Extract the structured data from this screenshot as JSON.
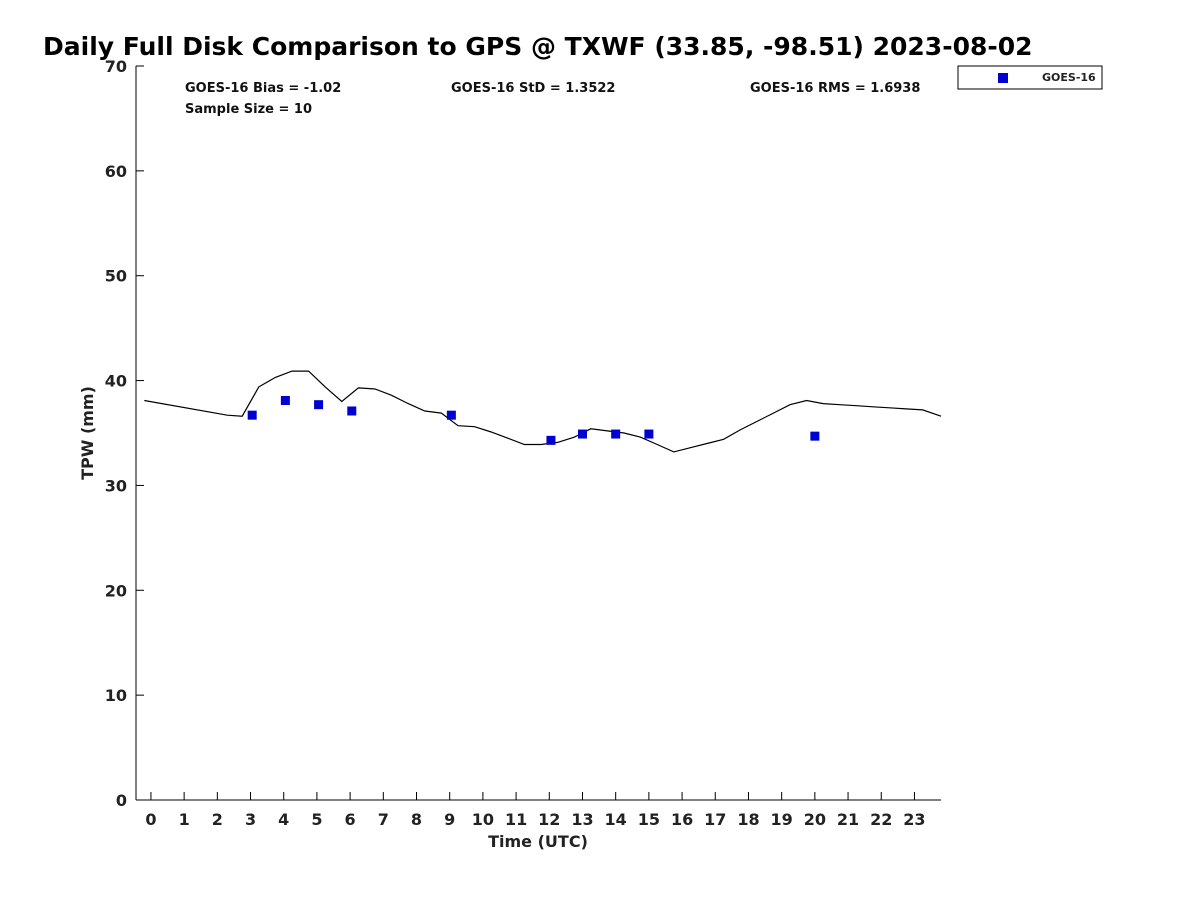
{
  "chart_data": {
    "type": "scatter",
    "title": "Daily Full Disk Comparison to GPS @ TXWF (33.85, -98.51) 2023-08-02",
    "xlabel": "Time (UTC)",
    "ylabel": "TPW (mm)",
    "xlim": [
      -0.45,
      23.8
    ],
    "ylim": [
      0,
      70
    ],
    "x_ticks": [
      0,
      1,
      2,
      3,
      4,
      5,
      6,
      7,
      8,
      9,
      10,
      11,
      12,
      13,
      14,
      15,
      16,
      17,
      18,
      19,
      20,
      21,
      22,
      23
    ],
    "y_ticks": [
      0,
      10,
      20,
      30,
      40,
      50,
      60,
      70
    ],
    "grid": false,
    "legend_position": "top-right-outside",
    "stats": {
      "bias": "GOES-16 Bias = -1.02",
      "std": "GOES-16 StD = 1.3522",
      "rms": "GOES-16 RMS = 1.6938",
      "sample_size": "Sample Size = 10"
    },
    "gps_line": {
      "color": "#000000",
      "x": [
        -0.2,
        2.3,
        2.75,
        3.25,
        3.75,
        4.25,
        4.75,
        5.25,
        5.75,
        6.25,
        6.75,
        7.25,
        7.75,
        8.25,
        8.75,
        9.25,
        9.75,
        10.25,
        10.75,
        11.25,
        11.75,
        12.25,
        12.75,
        13.25,
        13.75,
        14.25,
        14.75,
        15.25,
        15.75,
        16.25,
        16.75,
        17.25,
        17.75,
        18.25,
        18.75,
        19.25,
        19.75,
        20.25,
        20.75,
        21.25,
        21.75,
        22.25,
        22.75,
        23.25,
        23.8
      ],
      "y": [
        38.1,
        36.7,
        36.6,
        39.4,
        40.3,
        40.9,
        40.9,
        39.4,
        38.0,
        39.3,
        39.2,
        38.6,
        37.8,
        37.1,
        36.9,
        35.7,
        35.6,
        35.1,
        34.5,
        33.9,
        33.9,
        34.1,
        34.6,
        35.4,
        35.2,
        35.0,
        34.6,
        33.9,
        33.2,
        33.6,
        34.0,
        34.4,
        35.3,
        36.1,
        36.9,
        37.7,
        38.1,
        37.8,
        37.7,
        37.6,
        37.5,
        37.4,
        37.3,
        37.2,
        36.6
      ]
    },
    "series": [
      {
        "name": "GOES-16",
        "color": "#0000d0",
        "marker": "square",
        "x": [
          3.05,
          4.05,
          5.05,
          6.05,
          9.05,
          12.05,
          13.0,
          14.0,
          15.0,
          20.0
        ],
        "y": [
          36.7,
          38.1,
          37.7,
          37.1,
          36.7,
          34.3,
          34.9,
          34.9,
          34.9,
          34.7
        ]
      }
    ]
  }
}
